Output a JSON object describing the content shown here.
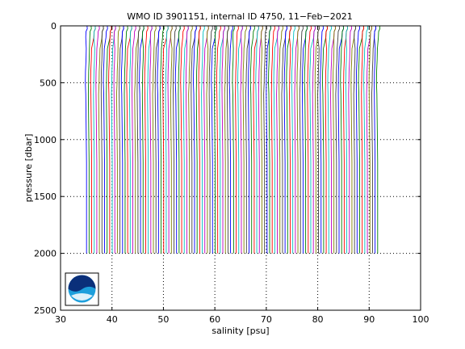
{
  "chart_data": {
    "type": "line",
    "title": "WMO ID 3901151, internal ID 4750, 11−Feb−2021",
    "xlabel": "salinity [psu]",
    "ylabel": "pressure [dbar]",
    "xlim": [
      30,
      100
    ],
    "ylim": [
      2500,
      0
    ],
    "y_inverted": true,
    "grid": "dotted",
    "x_ticks": [
      30,
      40,
      50,
      60,
      70,
      80,
      90,
      100
    ],
    "x_tick_labels": [
      "30",
      "40",
      "50",
      "60",
      "70",
      "80",
      "90",
      "100"
    ],
    "y_ticks": [
      0,
      500,
      1000,
      1500,
      2000,
      2500
    ],
    "y_tick_labels": [
      "0",
      "500",
      "1000",
      "1500",
      "2000",
      "2500"
    ],
    "profile_colors": [
      "#0000ff",
      "#008000",
      "#ff0000",
      "#00bfbf",
      "#bf00bf",
      "#7f7f00",
      "#404040"
    ],
    "profile_offset_step": 0.5,
    "profile_groups": [
      {
        "first_offset_psu": 35.0,
        "count": 57,
        "max_pressure_dbar": 2000
      },
      {
        "first_offset_psu": 63.6,
        "count": 57,
        "max_pressure_dbar": 2000
      }
    ],
    "profile_shape": {
      "pressure": [
        0,
        25,
        50,
        100,
        200,
        300,
        400,
        500,
        600,
        800,
        1000,
        1200,
        1500,
        1800,
        2000
      ],
      "salinity_delta": [
        0.55,
        0.6,
        0.35,
        0.3,
        0.1,
        0.05,
        -0.05,
        -0.08,
        -0.1,
        -0.05,
        0.0,
        0.05,
        0.05,
        0.05,
        0.05
      ]
    },
    "logo": "NOAA"
  }
}
